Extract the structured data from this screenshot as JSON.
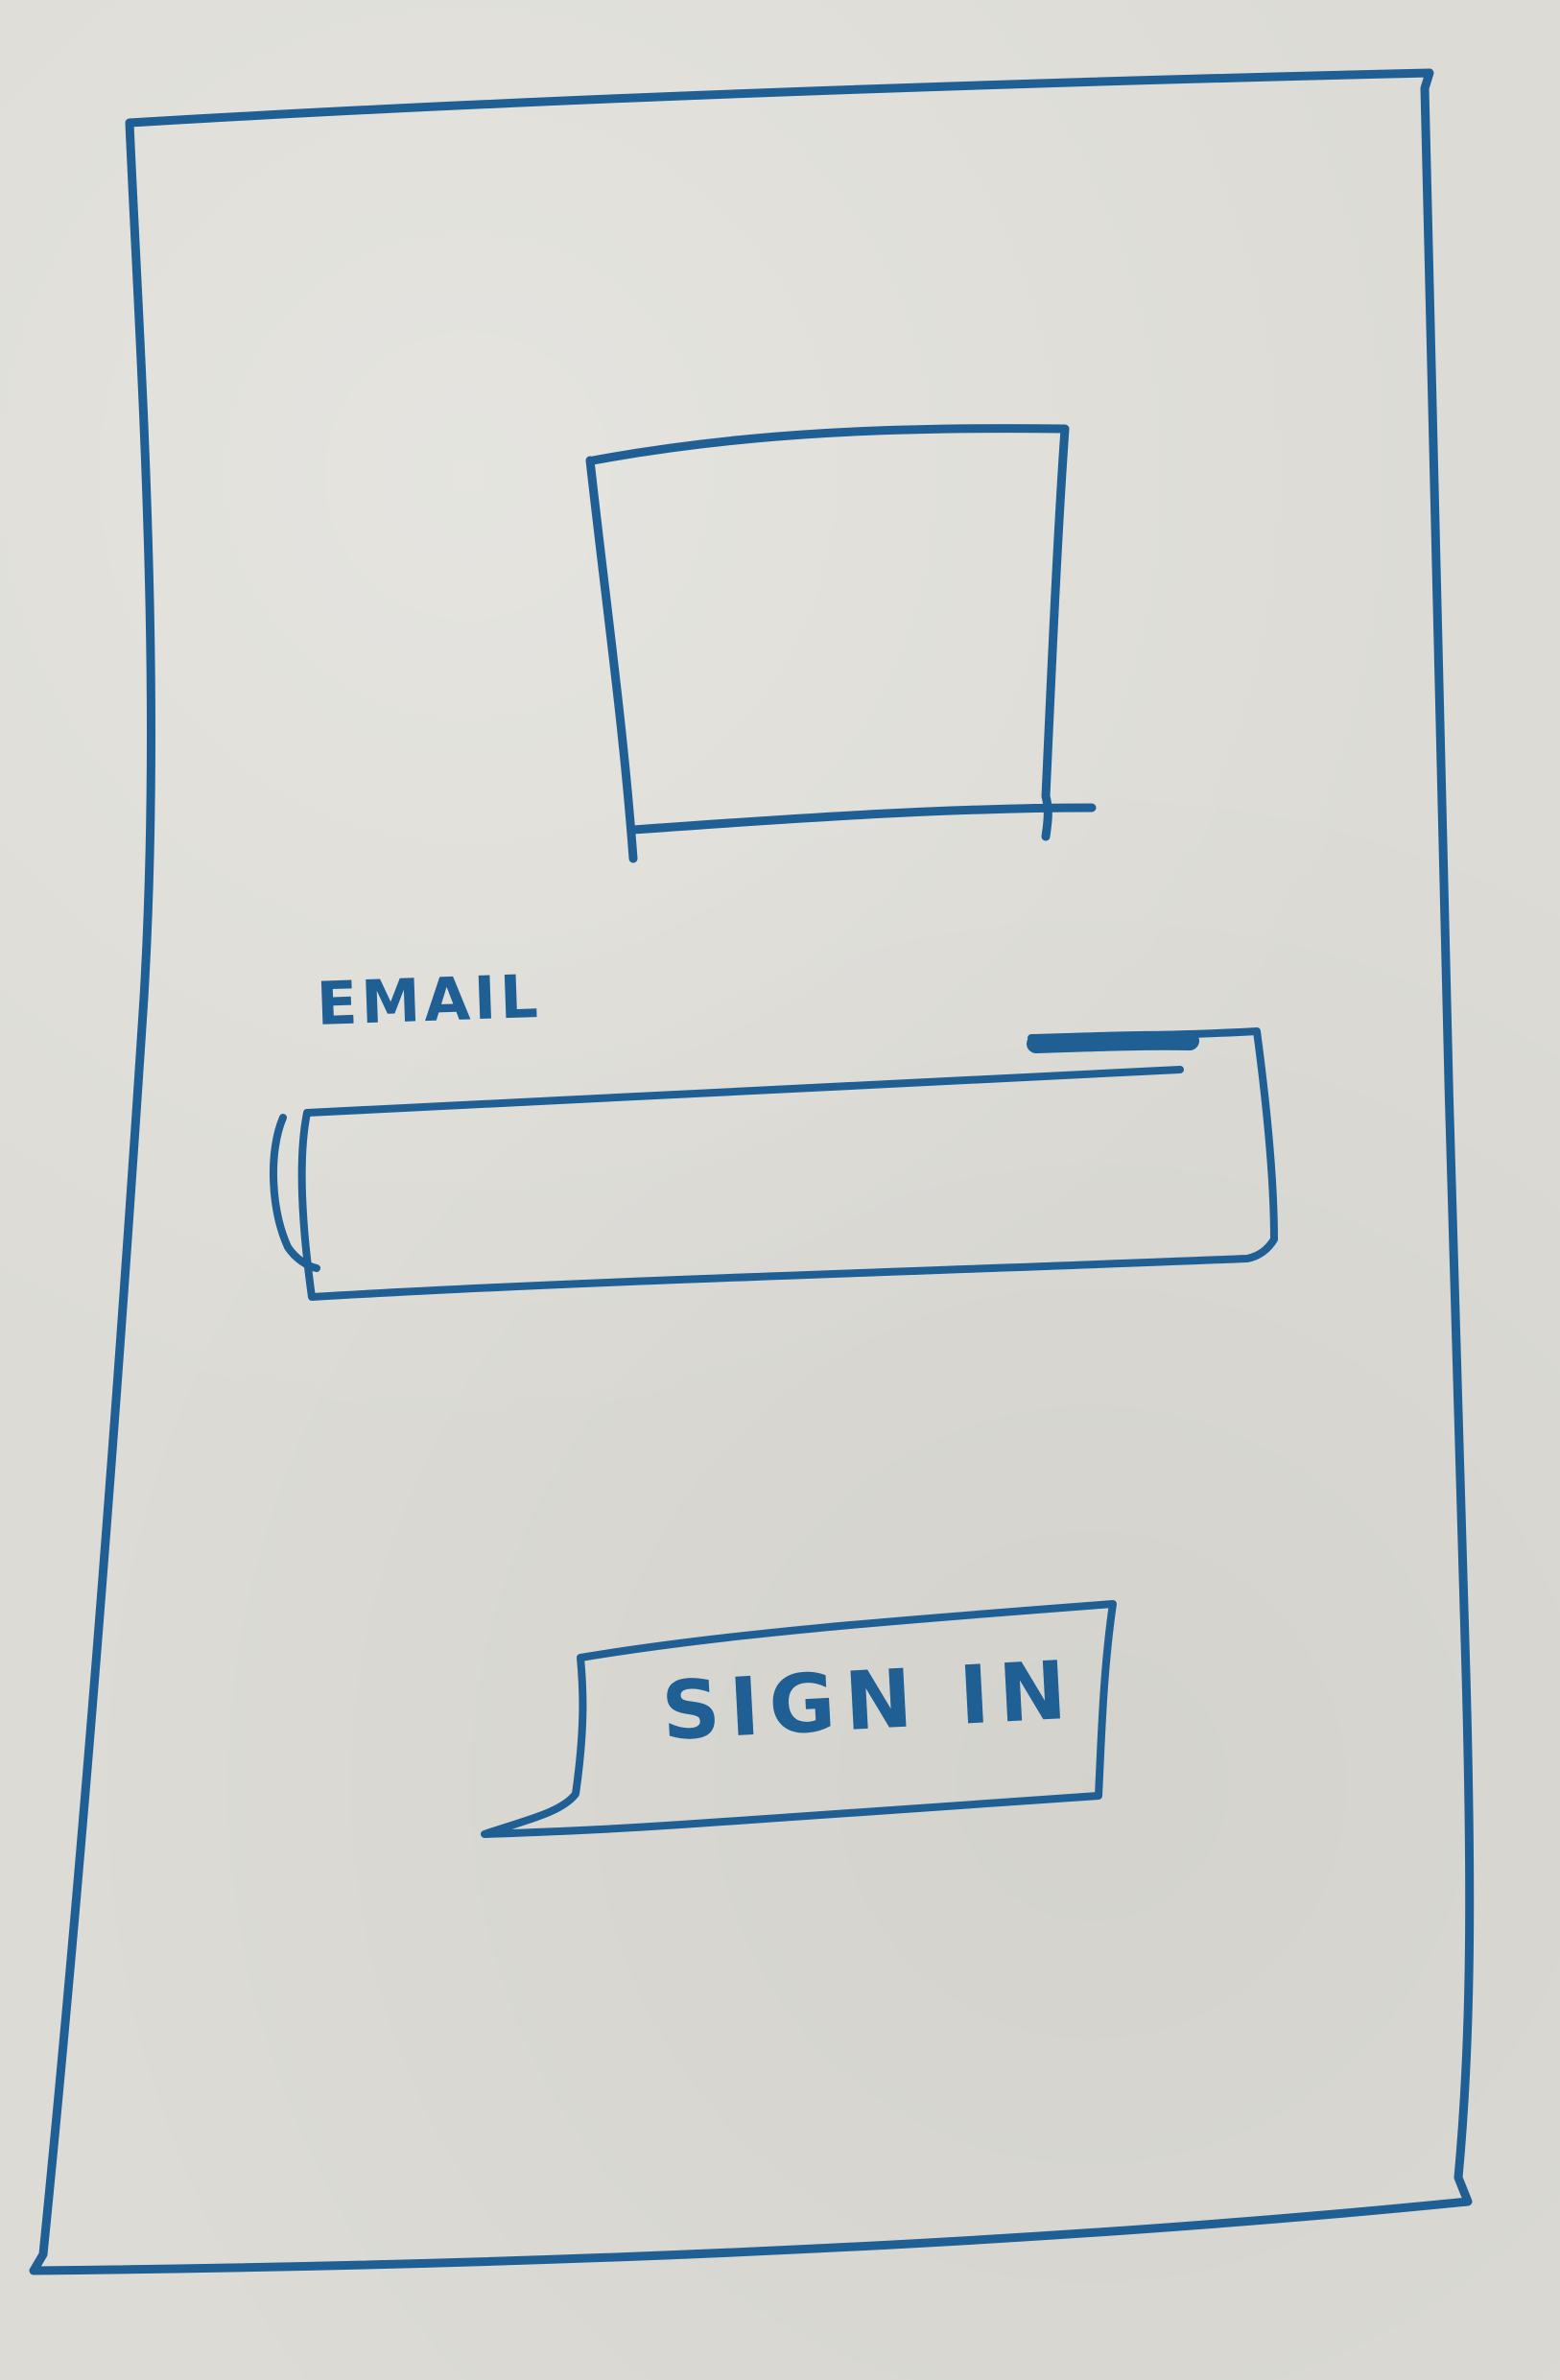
{
  "form": {
    "email_label": "EMAIL",
    "email_value": "",
    "signin_label": "SIGN IN"
  },
  "colors": {
    "ink": "#1f5f94",
    "paper": "#dcdbd5"
  }
}
